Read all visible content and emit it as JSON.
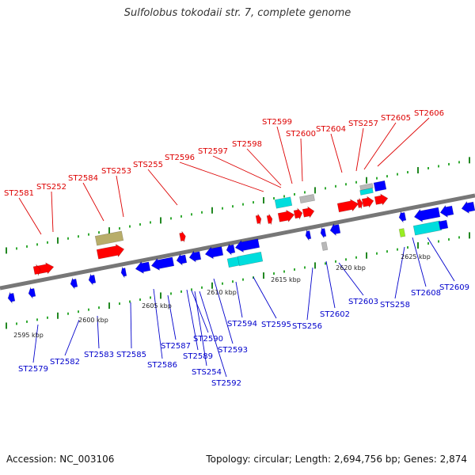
{
  "title": "Sulfolobus tokodaii str. 7, complete genome",
  "footer": {
    "accession": "Accession: NC_003106",
    "summary": "Topology: circular; Length: 2,694,756 bp; Genes: 2,874"
  },
  "colors": {
    "top_label": "#dd0000",
    "bottom_label": "#0000cc",
    "red_gene": "#ff0000",
    "blue_gene": "#0000ff",
    "cyan_gene": "#00dddd",
    "olive_gene": "#b8ad6a",
    "grey_gene": "#b8b8b8",
    "lime_gene": "#99ee22",
    "backbone": "#777777",
    "tick_major": "#228822",
    "tick_minor": "#33aa33"
  },
  "scale_labels": [
    "2595 kbp",
    "2600 kbp",
    "2605 kbp",
    "2610 kbp",
    "2615 kbp",
    "2620 kbp",
    "2625 kbp"
  ],
  "top_labels": [
    "ST2581",
    "STS252",
    "ST2584",
    "STS253",
    "STS255",
    "ST2596",
    "ST2597",
    "ST2598",
    "ST2599",
    "ST2600",
    "ST2604",
    "STS257",
    "ST2605",
    "ST2606"
  ],
  "bottom_labels": [
    "ST2579",
    "ST2582",
    "ST2583",
    "ST2585",
    "ST2586",
    "ST2587",
    "ST2589",
    "ST2590",
    "STS254",
    "ST2592",
    "ST2593",
    "ST2594",
    "ST2595",
    "STS256",
    "ST2602",
    "ST2603",
    "STS258",
    "ST2608",
    "ST2609"
  ]
}
